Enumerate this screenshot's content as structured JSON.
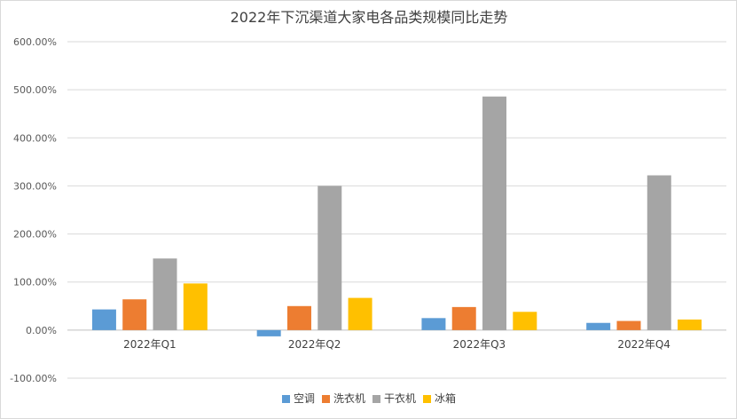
{
  "chart_data": {
    "type": "bar",
    "title": "2022年下沉渠道大家电各品类规模同比走势",
    "xlabel": "",
    "ylabel": "",
    "categories": [
      "2022年Q1",
      "2022年Q2",
      "2022年Q3",
      "2022年Q4"
    ],
    "series": [
      {
        "name": "空调",
        "color": "#5b9bd5",
        "values": [
          0.43,
          -0.13,
          0.25,
          0.15
        ]
      },
      {
        "name": "洗衣机",
        "color": "#ed7d31",
        "values": [
          0.64,
          0.5,
          0.48,
          0.19
        ]
      },
      {
        "name": "干衣机",
        "color": "#a5a5a5",
        "values": [
          1.49,
          3.0,
          4.86,
          3.22
        ]
      },
      {
        "name": "冰箱",
        "color": "#ffc000",
        "values": [
          0.97,
          0.67,
          0.38,
          0.22
        ]
      }
    ],
    "ylim": [
      -1.0,
      6.0
    ],
    "yticks": [
      -1.0,
      0.0,
      1.0,
      2.0,
      3.0,
      4.0,
      5.0,
      6.0
    ],
    "ytick_labels": [
      "-100.00%",
      "0.00%",
      "100.00%",
      "200.00%",
      "300.00%",
      "400.00%",
      "500.00%",
      "600.00%"
    ],
    "grid": true,
    "legend_position": "bottom"
  }
}
